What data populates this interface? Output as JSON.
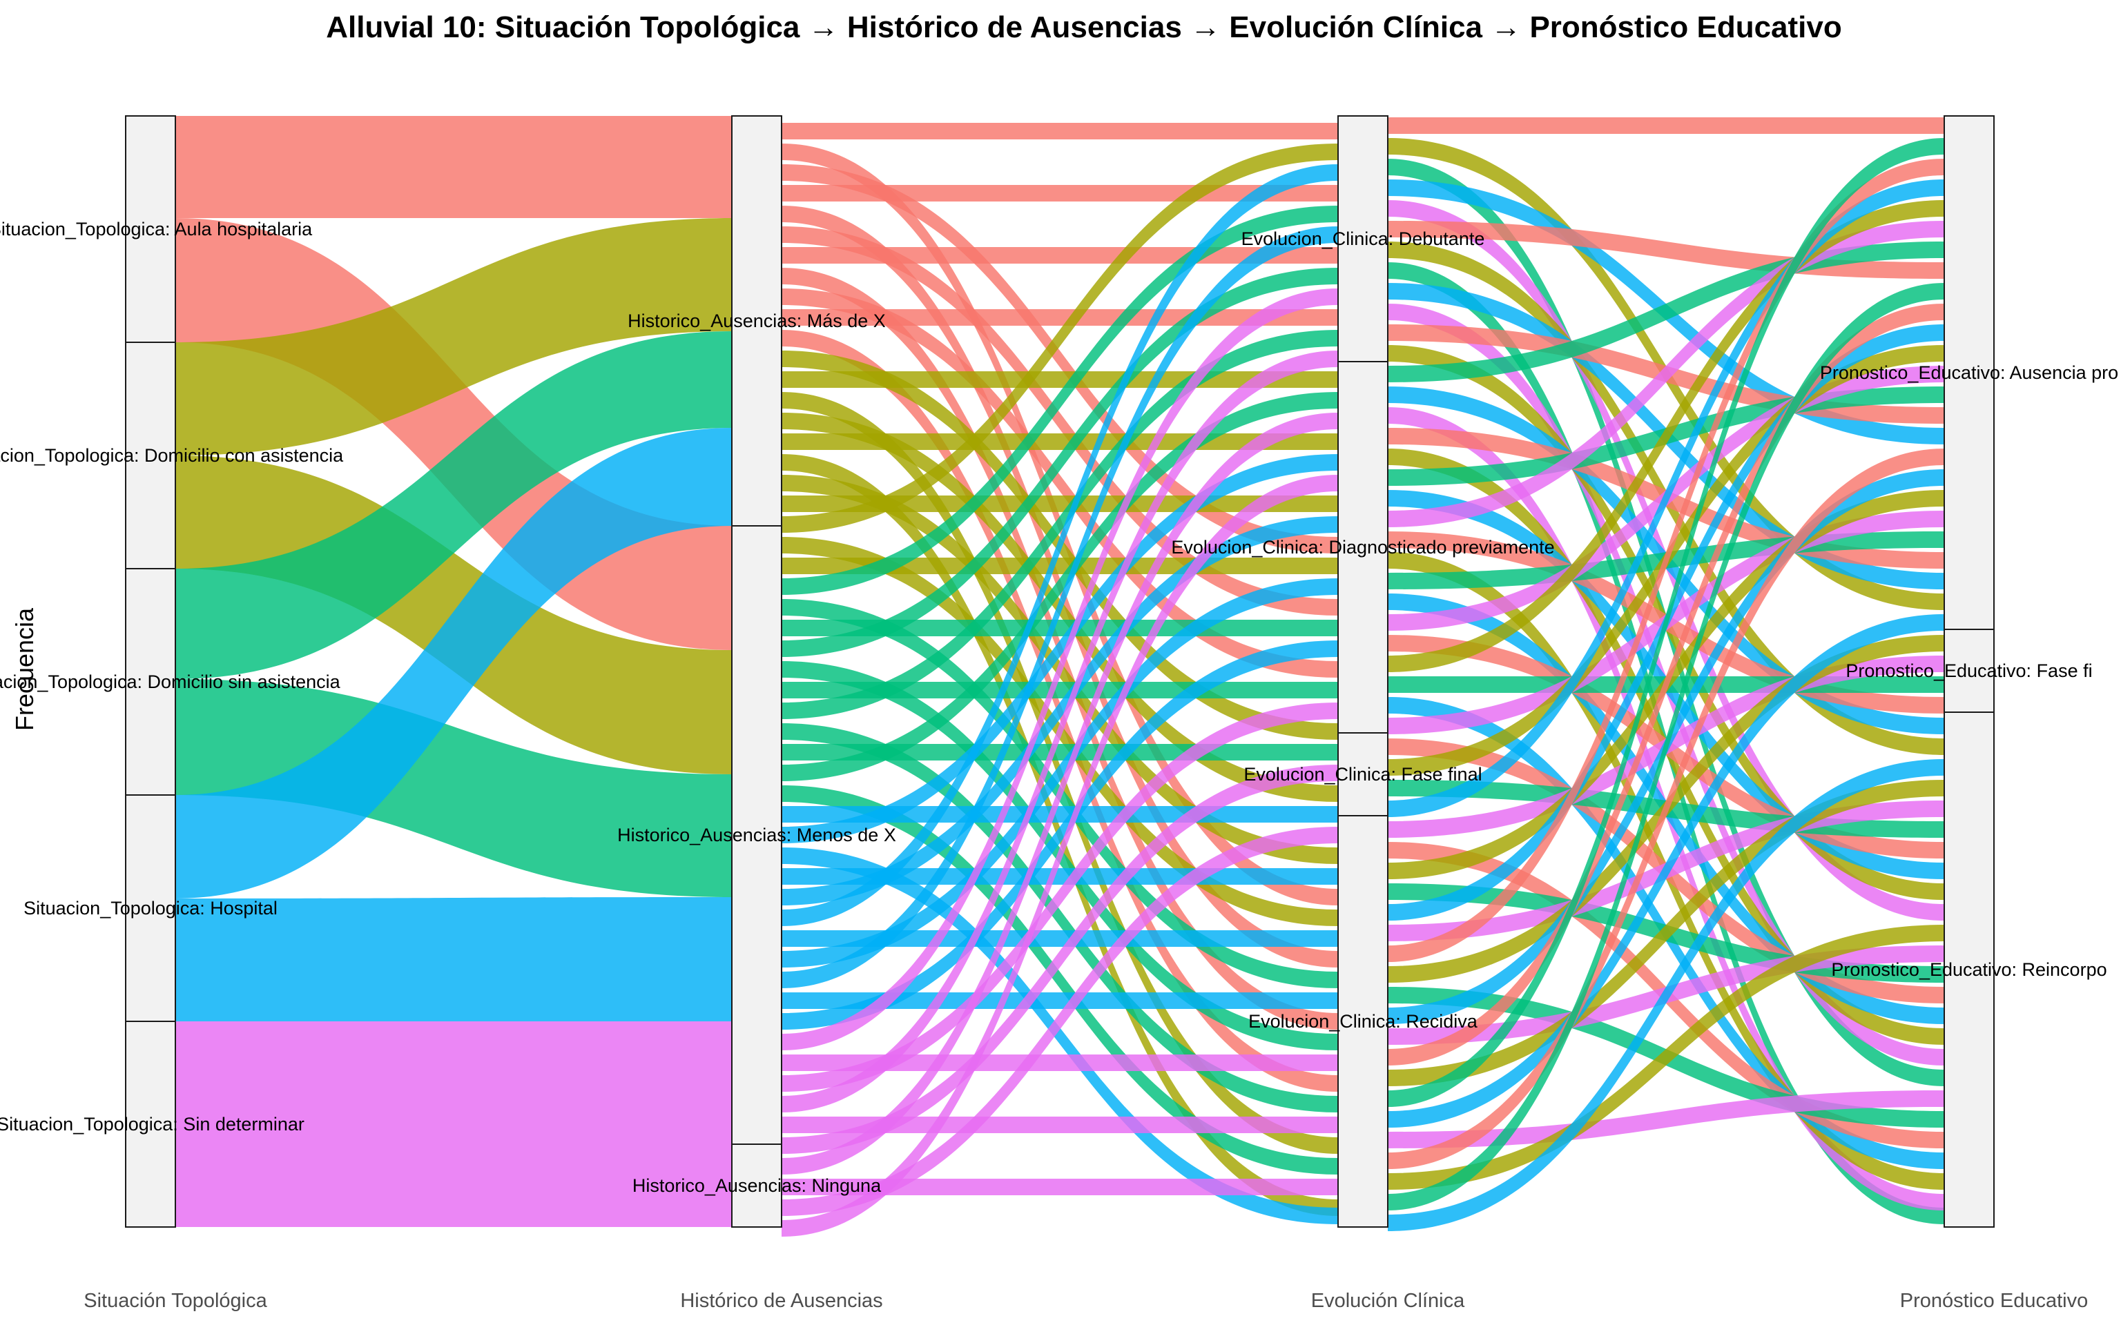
{
  "chart_data": {
    "type": "alluvial",
    "title": "Alluvial 10: Situación Topológica → Histórico de Ausencias → Evolución Clínica → Pronóstico Educativo",
    "xlabel": "",
    "ylabel": "Frecuencia",
    "axes": [
      "Situación Topológica",
      "Histórico de Ausencias",
      "Evolución Clínica",
      "Pronóstico Educativo"
    ],
    "colors": {
      "Aula hospitalaria": "#F8766D",
      "Domicilio con asistencia": "#A3A500",
      "Domicilio sin asistencia": "#00BF7D",
      "Hospital": "#00B0F6",
      "Sin determinar": "#E76BF3"
    },
    "strata": [
      [
        {
          "label": "Situacion_Topologica: Aula hospitalaria",
          "key": "Aula hospitalaria",
          "value": 12
        },
        {
          "label": "Situacion_Topologica: Domicilio con asistencia",
          "key": "Domicilio con asistencia",
          "value": 12
        },
        {
          "label": "Situacion_Topologica: Domicilio sin asistencia",
          "key": "Domicilio sin asistencia",
          "value": 12
        },
        {
          "label": "Situacion_Topologica: Hospital",
          "key": "Hospital",
          "value": 12
        },
        {
          "label": "Situacion_Topologica: Sin determinar",
          "key": "Sin determinar",
          "value": 12
        }
      ],
      [
        {
          "label": "Historico_Ausencias: Más de X",
          "key": "Más de X",
          "value": 24
        },
        {
          "label": "Historico_Ausencias: Menos de X",
          "key": "Menos de X",
          "value": 36
        },
        {
          "label": "Historico_Ausencias: Ninguna",
          "key": "Ninguna",
          "value": 0
        }
      ],
      [
        {
          "label": "Evolucion_Clinica: Debutante",
          "key": "Debutante",
          "value": 15
        },
        {
          "label": "Evolucion_Clinica: Diagnosticado previamente",
          "key": "Diagnosticado previamente",
          "value": 20
        },
        {
          "label": "Evolucion_Clinica: Fase final",
          "key": "Fase final",
          "value": 5
        },
        {
          "label": "Evolucion_Clinica: Recidiva",
          "key": "Recidiva",
          "value": 20
        }
      ],
      [
        {
          "label": "Pronostico_Educativo: Ausencia pro",
          "key": "Ausencia pro",
          "value": 25
        },
        {
          "label": "Pronostico_Educativo: Fase fi",
          "key": "Fase fi",
          "value": 4
        },
        {
          "label": "Pronostico_Educativo: Reincorpo",
          "key": "Reincorpo",
          "value": 31
        }
      ]
    ],
    "ylim": [
      0,
      54
    ]
  }
}
